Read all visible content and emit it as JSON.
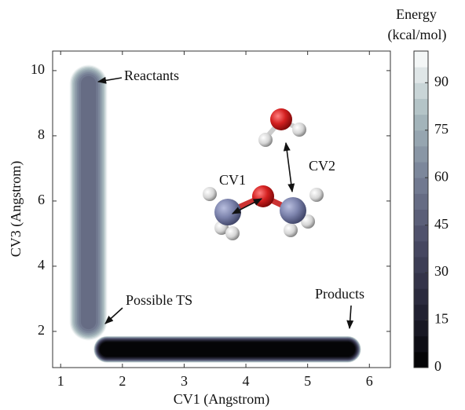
{
  "chart_data": {
    "type": "contour",
    "xlabel": "CV1 (Angstrom)",
    "ylabel": "CV3 (Angstrom)",
    "xlim": [
      0.87,
      6.34
    ],
    "ylim": [
      0.89,
      10.6
    ],
    "xticks": [
      1,
      2,
      3,
      4,
      5,
      6
    ],
    "yticks": [
      2,
      4,
      6,
      8,
      10
    ],
    "colorbar_label": [
      "Energy",
      "(kcal/mol)"
    ],
    "clim": [
      0,
      100
    ],
    "cticks": [
      0,
      15,
      30,
      45,
      60,
      75,
      90
    ],
    "levels": [
      0,
      5,
      10,
      15,
      20,
      25,
      30,
      35,
      40,
      45,
      50,
      55,
      60,
      65,
      70,
      75,
      80,
      85,
      90,
      95,
      100
    ],
    "colormap": [
      "#000000",
      "#262638",
      "#4a4c66",
      "#767f96",
      "#a9bcbf",
      "#ffffff"
    ],
    "wells": [
      {
        "x": [
          1.45,
          1.45
        ],
        "y": [
          2.3,
          9.6
        ],
        "min": 50
      },
      {
        "x": [
          1.75,
          5.65
        ],
        "y": [
          1.45,
          1.45
        ],
        "min": 0
      }
    ],
    "annotations": [
      "Reactants",
      "Possible TS",
      "Products",
      "CV1",
      "CV2"
    ]
  }
}
